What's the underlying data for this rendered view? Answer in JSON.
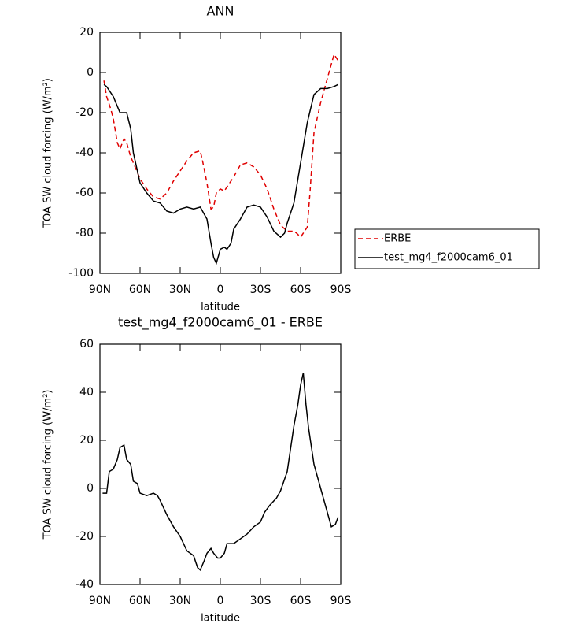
{
  "chart_data": [
    {
      "type": "line",
      "title": "ANN",
      "x_label": "latitude",
      "y_label": "TOA SW cloud forcing (W/m²)",
      "xlim": [
        90,
        -90
      ],
      "ylim": [
        -100,
        20
      ],
      "xticks": [
        {
          "value": 90,
          "label": "90N"
        },
        {
          "value": 60,
          "label": "60N"
        },
        {
          "value": 30,
          "label": "30N"
        },
        0,
        {
          "value": -30,
          "label": "30S"
        },
        {
          "value": -60,
          "label": "60S"
        },
        {
          "value": -90,
          "label": "90S"
        }
      ],
      "yticks": [
        -100,
        -80,
        -60,
        -40,
        -20,
        0,
        20
      ],
      "legend": "right",
      "series": [
        {
          "name": "ERBE",
          "color": "#e00000",
          "dash": true,
          "x": [
            87,
            85,
            82,
            80,
            77,
            75,
            72,
            70,
            67,
            65,
            60,
            55,
            50,
            45,
            40,
            35,
            30,
            25,
            20,
            15,
            13,
            10,
            7,
            5,
            3,
            0,
            -3,
            -5,
            -10,
            -15,
            -20,
            -25,
            -30,
            -35,
            -40,
            -45,
            -50,
            -55,
            -57,
            -60,
            -65,
            -67,
            -70,
            -75,
            -80,
            -85,
            -88
          ],
          "values": [
            -4,
            -12,
            -18,
            -23,
            -35,
            -38,
            -33,
            -35,
            -42,
            -45,
            -53,
            -58,
            -62,
            -63,
            -60,
            -54,
            -49,
            -44,
            -40,
            -39,
            -45,
            -55,
            -68,
            -67,
            -60,
            -58,
            -59,
            -57,
            -52,
            -46,
            -45,
            -47,
            -51,
            -58,
            -68,
            -76,
            -79,
            -79,
            -80,
            -82,
            -77,
            -60,
            -30,
            -15,
            -3,
            9,
            6
          ]
        },
        {
          "name": "test_mg4_f2000cam6_01",
          "color": "#000000",
          "dash": false,
          "x": [
            87,
            85,
            80,
            75,
            70,
            67,
            65,
            60,
            55,
            50,
            45,
            40,
            35,
            30,
            25,
            20,
            15,
            10,
            7,
            5,
            3,
            0,
            -3,
            -5,
            -8,
            -10,
            -15,
            -20,
            -25,
            -30,
            -35,
            -40,
            -45,
            -48,
            -50,
            -55,
            -60,
            -65,
            -70,
            -75,
            -80,
            -85,
            -88
          ],
          "values": [
            -6,
            -7,
            -12,
            -20,
            -20,
            -28,
            -40,
            -55,
            -60,
            -64,
            -65,
            -69,
            -70,
            -68,
            -67,
            -68,
            -67,
            -73,
            -85,
            -92,
            -95,
            -88,
            -87,
            -88,
            -85,
            -78,
            -73,
            -67,
            -66,
            -67,
            -72,
            -79,
            -82,
            -80,
            -75,
            -65,
            -45,
            -25,
            -11,
            -8,
            -8,
            -7,
            -6
          ]
        }
      ]
    },
    {
      "type": "line",
      "title": "test_mg4_f2000cam6_01 - ERBE",
      "x_label": "latitude",
      "y_label": "TOA SW cloud forcing (W/m²)",
      "xlim": [
        90,
        -90
      ],
      "ylim": [
        -40,
        60
      ],
      "xticks": [
        {
          "value": 90,
          "label": "90N"
        },
        {
          "value": 60,
          "label": "60N"
        },
        {
          "value": 30,
          "label": "30N"
        },
        0,
        {
          "value": -30,
          "label": "30S"
        },
        {
          "value": -60,
          "label": "60S"
        },
        {
          "value": -90,
          "label": "90S"
        }
      ],
      "yticks": [
        -40,
        -20,
        0,
        20,
        40,
        60
      ],
      "series": [
        {
          "color": "#000000",
          "dash": false,
          "x": [
            88,
            85,
            83,
            80,
            77,
            75,
            72,
            70,
            67,
            65,
            62,
            60,
            55,
            50,
            47,
            45,
            40,
            35,
            30,
            25,
            20,
            17,
            15,
            12,
            10,
            7,
            5,
            2,
            0,
            -3,
            -5,
            -10,
            -15,
            -20,
            -25,
            -30,
            -33,
            -37,
            -42,
            -45,
            -50,
            -55,
            -58,
            -60,
            -62,
            -64,
            -66,
            -70,
            -75,
            -80,
            -83,
            -86,
            -88
          ],
          "values": [
            -2,
            -2,
            7,
            8,
            12,
            17,
            18,
            12,
            10,
            3,
            2,
            -2,
            -3,
            -2,
            -3,
            -5,
            -11,
            -16,
            -20,
            -26,
            -28,
            -33,
            -34,
            -30,
            -27,
            -25,
            -27,
            -29,
            -29,
            -27,
            -23,
            -23,
            -21,
            -19,
            -16,
            -14,
            -10,
            -7,
            -4,
            -1,
            7,
            26,
            35,
            43,
            48,
            35,
            25,
            10,
            0,
            -10,
            -16,
            -15,
            -12
          ]
        }
      ]
    }
  ]
}
